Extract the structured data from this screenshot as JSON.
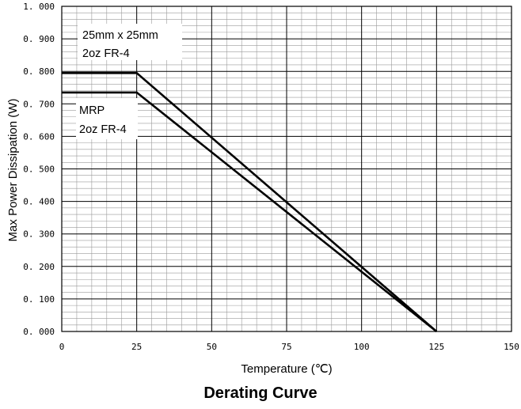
{
  "chart_data": {
    "type": "line",
    "title": "Derating Curve",
    "xlabel": "Temperature (℃)",
    "ylabel": "Max Power Dissipation (W)",
    "xlim": [
      0,
      150
    ],
    "ylim": [
      0,
      1
    ],
    "x_ticks": [
      "0",
      "25",
      "50",
      "75",
      "100",
      "125",
      "150"
    ],
    "y_ticks": [
      "0. 000",
      "0. 100",
      "0. 200",
      "0. 300",
      "0. 400",
      "0. 500",
      "0. 600",
      "0. 700",
      "0. 800",
      "0. 900",
      "1. 000"
    ],
    "grid": true,
    "series": [
      {
        "annotation": [
          "25mm x 25mm",
          "2oz FR-4"
        ],
        "points": [
          [
            0,
            0.795
          ],
          [
            25,
            0.795
          ],
          [
            125,
            0
          ]
        ]
      },
      {
        "annotation": [
          "MRP",
          "2oz FR-4"
        ],
        "points": [
          [
            0,
            0.735
          ],
          [
            25,
            0.735
          ],
          [
            125,
            0
          ]
        ]
      }
    ],
    "colors": {
      "series": "#000000",
      "grid": "#000000"
    }
  }
}
